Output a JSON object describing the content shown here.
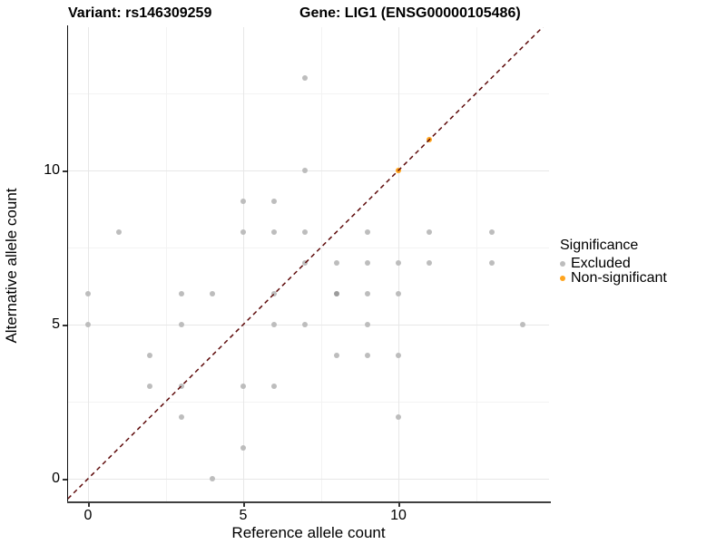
{
  "title": {
    "variant": "Variant: rs146309259",
    "gene": "Gene: LIG1 (ENSG00000105486)"
  },
  "legend": {
    "title": "Significance",
    "items": [
      {
        "label": "Excluded",
        "color": "#bdbdbd"
      },
      {
        "label": "Non-significant",
        "color": "#ffa41e"
      }
    ]
  },
  "chart_data": {
    "type": "scatter",
    "title": "Variant: rs146309259  /  Gene: LIG1 (ENSG00000105486)",
    "xlabel": "Reference allele count",
    "ylabel": "Alternative allele count",
    "xlim": [
      -0.65,
      14.85
    ],
    "ylim": [
      -0.9,
      14.65
    ],
    "x_ticks": [
      0,
      5,
      10
    ],
    "y_ticks": [
      0,
      5,
      10
    ],
    "x_minor_ticks": [
      2.5,
      7.5,
      12.5
    ],
    "y_minor_ticks": [
      2.5,
      7.5,
      12.5
    ],
    "grid": true,
    "legend_position": "right",
    "identity_line": {
      "style": "dashed",
      "color": "#5e0b0b",
      "equation": "y = x"
    },
    "series": [
      {
        "name": "Excluded",
        "color": "#bdbdbd",
        "points": [
          [
            0,
            5
          ],
          [
            0,
            6
          ],
          [
            1,
            8
          ],
          [
            2,
            3
          ],
          [
            2,
            4
          ],
          [
            3,
            2
          ],
          [
            3,
            3
          ],
          [
            3,
            5
          ],
          [
            3,
            6
          ],
          [
            4,
            0
          ],
          [
            4,
            6
          ],
          [
            5,
            1
          ],
          [
            5,
            3
          ],
          [
            5,
            8
          ],
          [
            5,
            9
          ],
          [
            6,
            3
          ],
          [
            6,
            5
          ],
          [
            6,
            6
          ],
          [
            6,
            8
          ],
          [
            6,
            9
          ],
          [
            7,
            5
          ],
          [
            7,
            7
          ],
          [
            7,
            8
          ],
          [
            7,
            10
          ],
          [
            7,
            13
          ],
          [
            8,
            4
          ],
          [
            8,
            6
          ],
          [
            8,
            7
          ],
          [
            9,
            4
          ],
          [
            9,
            5
          ],
          [
            9,
            6
          ],
          [
            9,
            7
          ],
          [
            9,
            8
          ],
          [
            10,
            2
          ],
          [
            10,
            4
          ],
          [
            10,
            6
          ],
          [
            10,
            7
          ],
          [
            11,
            7
          ],
          [
            11,
            8
          ],
          [
            13,
            7
          ],
          [
            13,
            8
          ],
          [
            14,
            5
          ]
        ]
      },
      {
        "name": "Non-significant",
        "color": "#ffa41e",
        "points": [
          [
            10,
            10
          ],
          [
            11,
            11
          ]
        ]
      }
    ],
    "darker_overlap_points": [
      [
        8,
        6
      ]
    ]
  }
}
